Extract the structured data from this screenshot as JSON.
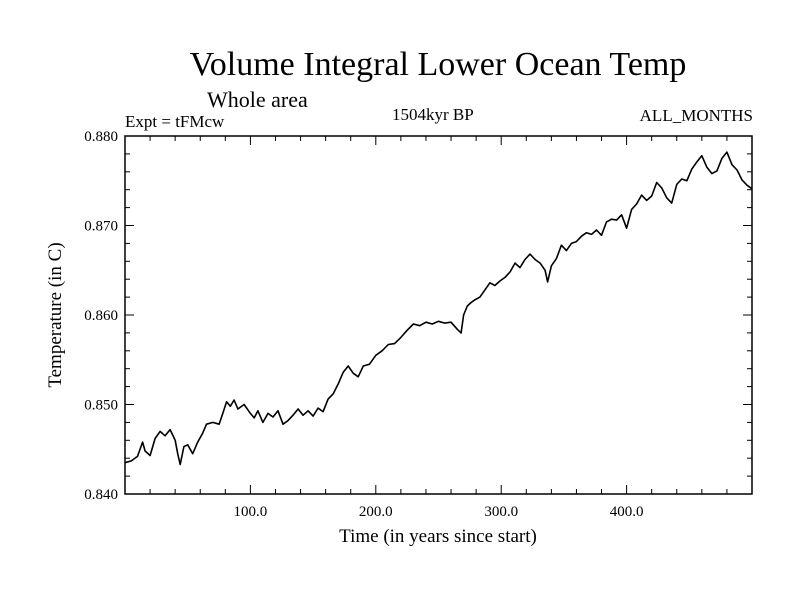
{
  "header": {
    "title": "Volume Integral Lower Ocean Temp",
    "subtitle": "Whole area",
    "experiment": "Expt = tFMcw",
    "period": "1504kyr BP",
    "months": "ALL_MONTHS"
  },
  "chart_data": {
    "type": "line",
    "title": "Volume Integral Lower Ocean Temp",
    "xlabel": "Time (in years since start)",
    "ylabel": "Temperature (in C)",
    "xlim": [
      0,
      500
    ],
    "ylim": [
      0.84,
      0.88
    ],
    "x_ticks": [
      100,
      200,
      300,
      400
    ],
    "x_tick_labels": [
      "100.0",
      "200.0",
      "300.0",
      "400.0"
    ],
    "y_ticks": [
      0.84,
      0.85,
      0.86,
      0.87,
      0.88
    ],
    "y_tick_labels": [
      "0.840",
      "0.850",
      "0.860",
      "0.870",
      "0.880"
    ],
    "grid": false,
    "series": [
      {
        "name": "Volume Integral Lower Ocean Temp",
        "x": [
          0,
          5,
          10,
          14,
          16,
          20,
          24,
          28,
          32,
          36,
          40,
          42,
          44,
          47,
          50,
          54,
          58,
          62,
          65,
          70,
          75,
          78,
          81,
          84,
          87,
          90,
          95,
          100,
          103,
          106,
          110,
          114,
          118,
          122,
          126,
          130,
          134,
          138,
          142,
          146,
          150,
          154,
          158,
          162,
          166,
          170,
          174,
          178,
          182,
          186,
          190,
          195,
          200,
          205,
          210,
          215,
          220,
          225,
          230,
          235,
          240,
          245,
          250,
          255,
          260,
          265,
          268,
          270,
          273,
          276,
          279,
          283,
          287,
          291,
          295,
          299,
          303,
          307,
          311,
          315,
          319,
          323,
          327,
          331,
          335,
          337,
          340,
          344,
          348,
          352,
          356,
          360,
          364,
          368,
          372,
          376,
          380,
          384,
          388,
          392,
          396,
          400,
          404,
          408,
          412,
          416,
          420,
          424,
          428,
          432,
          436,
          440,
          444,
          448,
          452,
          456,
          460,
          464,
          468,
          472,
          476,
          480,
          484,
          488,
          492,
          496,
          500
        ],
        "values": [
          0.8435,
          0.8437,
          0.8442,
          0.8458,
          0.8448,
          0.8443,
          0.8462,
          0.847,
          0.8465,
          0.8472,
          0.846,
          0.8445,
          0.8433,
          0.8453,
          0.8455,
          0.8445,
          0.8458,
          0.8468,
          0.8478,
          0.848,
          0.8478,
          0.849,
          0.8503,
          0.8498,
          0.8505,
          0.8495,
          0.85,
          0.849,
          0.8485,
          0.8493,
          0.848,
          0.849,
          0.8486,
          0.8493,
          0.8478,
          0.8482,
          0.8488,
          0.8495,
          0.8488,
          0.8493,
          0.8487,
          0.8496,
          0.8492,
          0.8506,
          0.8512,
          0.8523,
          0.8536,
          0.8543,
          0.8535,
          0.8531,
          0.8543,
          0.8545,
          0.8555,
          0.856,
          0.8567,
          0.8568,
          0.8575,
          0.8583,
          0.859,
          0.8588,
          0.8592,
          0.859,
          0.8593,
          0.8591,
          0.8592,
          0.8584,
          0.858,
          0.86,
          0.861,
          0.8614,
          0.8617,
          0.862,
          0.8628,
          0.8636,
          0.8633,
          0.8638,
          0.8642,
          0.8648,
          0.8658,
          0.8653,
          0.8662,
          0.8668,
          0.8662,
          0.8658,
          0.865,
          0.8637,
          0.8655,
          0.8663,
          0.8678,
          0.8672,
          0.868,
          0.8682,
          0.8688,
          0.8692,
          0.869,
          0.8695,
          0.8689,
          0.8704,
          0.8707,
          0.8706,
          0.8712,
          0.8697,
          0.8718,
          0.8724,
          0.8734,
          0.8728,
          0.8733,
          0.8748,
          0.8742,
          0.8731,
          0.8725,
          0.8746,
          0.8752,
          0.875,
          0.8763,
          0.8771,
          0.8778,
          0.8765,
          0.8758,
          0.8761,
          0.8775,
          0.8782,
          0.8768,
          0.8762,
          0.8751,
          0.8745,
          0.8741
        ]
      }
    ]
  }
}
